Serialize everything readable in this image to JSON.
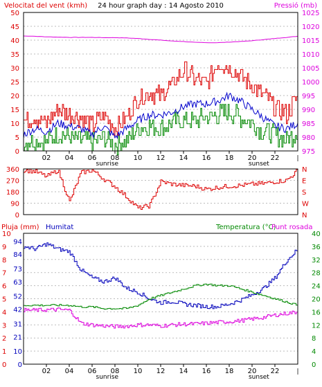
{
  "colors": {
    "wind": "#dd0000",
    "wind_avg": "#0000cc",
    "wind_min": "#008800",
    "pressure": "#dd00dd",
    "humidity": "#0000bb",
    "temperature": "#008800",
    "dewpoint": "#dd00dd",
    "rain": "#dd0000",
    "grid": "#bbbbbb",
    "frame": "#000000",
    "background": "#ffffff"
  },
  "title": "24 hour graph day : 14 Agosto 2010",
  "hour_ticks": [
    "02",
    "04",
    "06",
    "08",
    "10",
    "12",
    "14",
    "16",
    "18",
    "20",
    "22"
  ],
  "marker_labels": {
    "sunrise": "sunrise",
    "sunset": "sunset",
    "end": "|"
  },
  "chart_data": [
    {
      "type": "line",
      "title": "24 hour graph day : 14 Agosto 2010",
      "ylabel": "Velocitat del vent (kmh)",
      "y2label": "Pressió (mb)",
      "ylim": [
        0,
        50
      ],
      "y2lim": [
        975,
        1025
      ],
      "y_ticks": [
        0,
        5,
        10,
        15,
        20,
        25,
        30,
        35,
        40,
        45,
        50
      ],
      "y2_ticks": [
        975,
        980,
        985,
        990,
        995,
        1000,
        1005,
        1010,
        1015,
        1020,
        1025
      ],
      "x": [
        0,
        1,
        2,
        3,
        4,
        5,
        6,
        7,
        8,
        9,
        10,
        11,
        12,
        13,
        14,
        15,
        16,
        17,
        18,
        19,
        20,
        21,
        22,
        23,
        24
      ],
      "series": [
        {
          "name": "wind_gust",
          "axis": "left",
          "values": [
            11,
            12,
            10,
            15,
            13,
            12,
            9,
            13,
            8,
            12,
            19,
            21,
            20,
            24,
            29,
            26,
            24,
            32,
            30,
            27,
            24,
            20,
            16,
            13,
            20
          ]
        },
        {
          "name": "wind_avg",
          "axis": "left",
          "values": [
            6,
            8,
            7,
            10,
            9,
            8,
            6,
            9,
            5,
            8,
            11,
            13,
            13,
            14,
            16,
            17,
            17,
            18,
            20,
            18,
            15,
            12,
            9,
            8,
            10
          ]
        },
        {
          "name": "wind_low",
          "axis": "left",
          "values": [
            3,
            4,
            3,
            6,
            5,
            4,
            3,
            5,
            2,
            4,
            8,
            9,
            8,
            10,
            11,
            11,
            12,
            13,
            14,
            12,
            10,
            7,
            6,
            4,
            7
          ]
        },
        {
          "name": "pressure",
          "axis": "right",
          "values": [
            1016.5,
            1016.4,
            1016.2,
            1016.1,
            1016.0,
            1016.0,
            1016.0,
            1015.9,
            1015.9,
            1015.8,
            1015.6,
            1015.3,
            1015.0,
            1014.7,
            1014.5,
            1014.2,
            1014.1,
            1014.1,
            1014.3,
            1014.5,
            1014.8,
            1015.2,
            1015.6,
            1016.0,
            1016.4
          ]
        }
      ]
    },
    {
      "type": "line",
      "ylabel": "",
      "ylim": [
        0,
        360
      ],
      "y_ticks": [
        0,
        90,
        180,
        270,
        360
      ],
      "y2_ticks": [
        "N",
        "W",
        "S",
        "E",
        "N"
      ],
      "x": [
        0,
        1,
        2,
        3,
        4,
        5,
        6,
        7,
        8,
        9,
        10,
        11,
        12,
        13,
        14,
        15,
        16,
        17,
        18,
        19,
        20,
        21,
        22,
        23,
        24
      ],
      "series": [
        {
          "name": "wind_direction",
          "values": [
            350,
            340,
            300,
            350,
            100,
            330,
            350,
            280,
            220,
            140,
            50,
            70,
            260,
            240,
            230,
            225,
            200,
            215,
            225,
            230,
            240,
            245,
            260,
            270,
            350
          ]
        }
      ]
    },
    {
      "type": "line",
      "ylabel": "Pluja (mm)",
      "y_label_humidity": "Humitat",
      "y2label": "Temperatura (°C)",
      "y2label_dew": "Punt rosada",
      "ylim_rain": [
        0,
        10
      ],
      "ylim_humidity": [
        0,
        100
      ],
      "y2lim": [
        0,
        40
      ],
      "rain_ticks": [
        0,
        1,
        2,
        3,
        4,
        5,
        6,
        7,
        8,
        9,
        10
      ],
      "humidity_ticks": [
        0,
        10,
        21,
        31,
        42,
        52,
        63,
        73,
        84,
        94
      ],
      "temp_ticks": [
        0,
        4,
        8,
        12,
        16,
        20,
        24,
        28,
        32,
        36,
        40
      ],
      "x": [
        0,
        1,
        2,
        3,
        4,
        5,
        6,
        7,
        8,
        9,
        10,
        11,
        12,
        13,
        14,
        15,
        16,
        17,
        18,
        19,
        20,
        21,
        22,
        23,
        24
      ],
      "series": [
        {
          "name": "humidity",
          "axis": "humidity",
          "values": [
            90,
            88,
            92,
            88,
            86,
            72,
            66,
            63,
            66,
            58,
            55,
            50,
            47,
            48,
            46,
            45,
            44,
            44,
            46,
            49,
            53,
            58,
            66,
            79,
            88
          ]
        },
        {
          "name": "temperature",
          "axis": "temp",
          "values": [
            18,
            18,
            18,
            18,
            18,
            17.5,
            17.5,
            17,
            17,
            17,
            18,
            20,
            21,
            22,
            23,
            24,
            24.5,
            24,
            24,
            23,
            22,
            21,
            20,
            19,
            18
          ]
        },
        {
          "name": "dewpoint",
          "axis": "temp",
          "values": [
            16.5,
            16.5,
            16.6,
            16.7,
            16.5,
            12.5,
            12,
            11.7,
            11.5,
            11.6,
            12,
            12,
            11.7,
            12,
            12.2,
            12.3,
            12.5,
            12.8,
            13,
            13.3,
            13.8,
            14.3,
            15,
            15.5,
            16
          ]
        },
        {
          "name": "rain",
          "axis": "rain",
          "values": [
            0,
            0,
            0,
            0,
            0,
            0,
            0,
            0,
            0,
            0,
            0,
            0,
            0,
            0,
            0,
            0,
            0,
            0,
            0,
            0,
            0,
            0,
            0,
            0,
            0
          ]
        }
      ]
    }
  ]
}
